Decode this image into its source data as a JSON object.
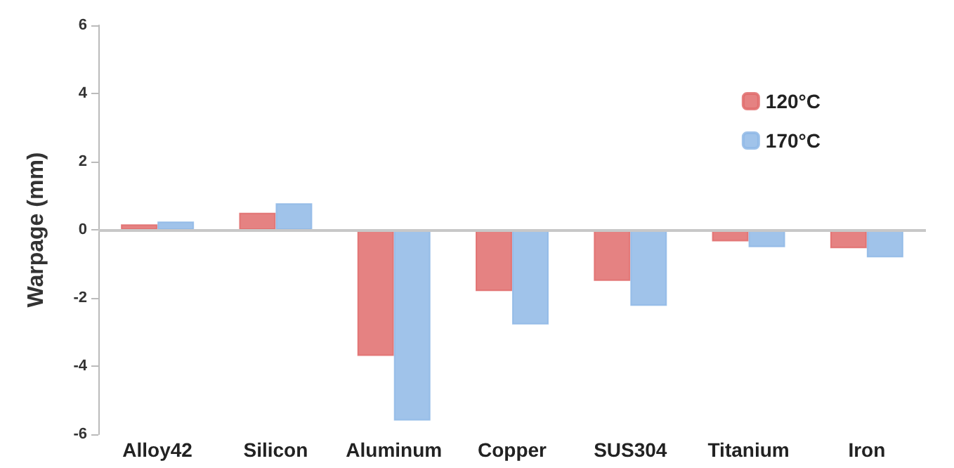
{
  "chart_data": {
    "type": "bar",
    "ylabel": "Warpage (mm)",
    "categories": [
      "Alloy42",
      "Silicon",
      "Aluminum",
      "Copper",
      "SUS304",
      "Titanium",
      "Iron"
    ],
    "series": [
      {
        "name": "120°C",
        "color": "#e06c6c",
        "values": [
          0.16,
          0.5,
          -3.7,
          -1.8,
          -1.5,
          -0.34,
          -0.54
        ]
      },
      {
        "name": "170°C",
        "color": "#8fb8e6",
        "values": [
          0.24,
          0.78,
          -5.6,
          -2.78,
          -2.23,
          -0.51,
          -0.81
        ]
      }
    ],
    "ylim": [
      -6,
      6
    ],
    "yticks": [
      -6,
      -4,
      -2,
      0,
      2,
      4,
      6
    ],
    "grid": false,
    "ref_lines": [
      {
        "axis": "y",
        "value": 0,
        "color": "#c8c8c8"
      }
    ],
    "legend": "top right"
  }
}
